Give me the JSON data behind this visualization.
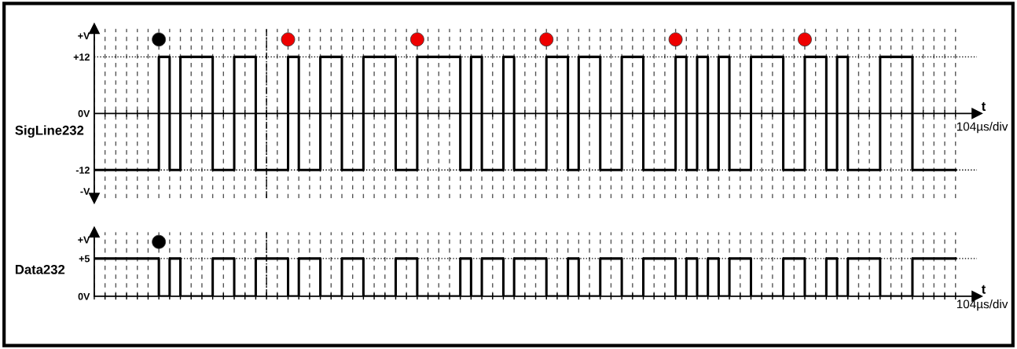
{
  "chart_data": [
    {
      "type": "step",
      "ylabel": "SigLine232",
      "xlabel": "t",
      "annotations": [
        "104µs/div"
      ],
      "tick_labels": "y",
      "grid": "x",
      "ylim": [
        -18,
        18
      ],
      "categories": [
        null,
        null,
        null,
        null,
        null,
        null,
        null,
        null,
        null,
        null,
        null,
        null,
        null,
        null,
        null,
        null,
        null,
        null,
        null,
        null,
        null,
        null,
        null,
        null,
        null,
        null,
        null,
        null,
        null,
        null,
        null,
        null,
        null,
        null,
        null,
        null,
        null,
        null,
        null,
        null,
        null,
        null,
        null,
        null,
        null,
        null,
        null,
        null,
        null,
        null,
        null,
        null,
        null,
        null,
        null,
        null,
        null,
        null,
        null,
        null,
        null,
        null,
        null,
        null,
        null,
        null,
        null,
        null,
        null,
        null,
        null,
        null,
        null,
        null,
        null,
        null,
        null,
        null,
        null,
        null,
        null
      ],
      "yticks": [
        {
          "value": 16.5,
          "label": "+V"
        },
        {
          "value": 12,
          "label": "+12"
        },
        {
          "value": 0,
          "label": "0V"
        },
        {
          "value": -12,
          "label": "-12"
        },
        {
          "value": -16.5,
          "label": "-V"
        }
      ],
      "ref_lines": [
        {
          "axis": "y",
          "value": 12,
          "line_style": "dotted",
          "color": "#000000"
        },
        {
          "axis": "y",
          "value": -12,
          "line_style": "dotted",
          "color": "#000000"
        }
      ],
      "series": [
        {
          "color": "#000000",
          "values": [
            -12,
            -12,
            -12,
            -12,
            -12,
            -12,
            12,
            -12,
            12,
            12,
            12,
            -12,
            -12,
            12,
            12,
            -12,
            -12,
            -12,
            12,
            -12,
            -12,
            12,
            12,
            -12,
            -12,
            12,
            12,
            12,
            -12,
            -12,
            12,
            12,
            12,
            12,
            -12,
            12,
            -12,
            -12,
            12,
            -12,
            -12,
            -12,
            12,
            12,
            -12,
            12,
            12,
            -12,
            -12,
            12,
            12,
            -12,
            -12,
            -12,
            12,
            -12,
            12,
            -12,
            12,
            -12,
            -12,
            12,
            12,
            12,
            -12,
            -12,
            12,
            12,
            -12,
            12,
            -12,
            -12,
            -12,
            12,
            12,
            12,
            -12,
            -12,
            -12,
            -12,
            -12
          ]
        },
        {
          "type": "scatter",
          "marker": "circle",
          "values": [
            null,
            null,
            null,
            null,
            null,
            null,
            15.7,
            null,
            null,
            null,
            null,
            null,
            null,
            null,
            null,
            null,
            null,
            null,
            15.7,
            null,
            null,
            null,
            null,
            null,
            null,
            null,
            null,
            null,
            null,
            null,
            15.7,
            null,
            null,
            null,
            null,
            null,
            null,
            null,
            null,
            null,
            null,
            null,
            15.7,
            null,
            null,
            null,
            null,
            null,
            null,
            null,
            null,
            null,
            null,
            null,
            15.7,
            null,
            null,
            null,
            null,
            null,
            null,
            null,
            null,
            null,
            null,
            null,
            15.7,
            null,
            null,
            null,
            null,
            null,
            null,
            null,
            null,
            null,
            null,
            null,
            null,
            null,
            null
          ],
          "colors": [
            null,
            null,
            null,
            null,
            null,
            null,
            "#000000",
            null,
            null,
            null,
            null,
            null,
            null,
            null,
            null,
            null,
            null,
            null,
            "#ee0000",
            null,
            null,
            null,
            null,
            null,
            null,
            null,
            null,
            null,
            null,
            null,
            "#ee0000",
            null,
            null,
            null,
            null,
            null,
            null,
            null,
            null,
            null,
            null,
            null,
            "#ee0000",
            null,
            null,
            null,
            null,
            null,
            null,
            null,
            null,
            null,
            null,
            null,
            "#ee0000",
            null,
            null,
            null,
            null,
            null,
            null,
            null,
            null,
            null,
            null,
            null,
            "#ee0000",
            null,
            null,
            null,
            null,
            null,
            null,
            null,
            null,
            null,
            null,
            null,
            null,
            null,
            null
          ]
        }
      ]
    },
    {
      "type": "step",
      "ylabel": "Data232",
      "xlabel": "t",
      "annotations": [
        "104µs/div"
      ],
      "tick_labels": "y",
      "grid": "x",
      "ylim": [
        0,
        8.5
      ],
      "categories": [
        null,
        null,
        null,
        null,
        null,
        null,
        null,
        null,
        null,
        null,
        null,
        null,
        null,
        null,
        null,
        null,
        null,
        null,
        null,
        null,
        null,
        null,
        null,
        null,
        null,
        null,
        null,
        null,
        null,
        null,
        null,
        null,
        null,
        null,
        null,
        null,
        null,
        null,
        null,
        null,
        null,
        null,
        null,
        null,
        null,
        null,
        null,
        null,
        null,
        null,
        null,
        null,
        null,
        null,
        null,
        null,
        null,
        null,
        null,
        null,
        null,
        null,
        null,
        null,
        null,
        null,
        null,
        null,
        null,
        null,
        null,
        null,
        null,
        null,
        null,
        null,
        null,
        null,
        null,
        null,
        null
      ],
      "yticks": [
        {
          "value": 7.5,
          "label": "+V"
        },
        {
          "value": 5,
          "label": "+5"
        },
        {
          "value": 0,
          "label": "0V"
        }
      ],
      "ref_lines": [
        {
          "axis": "y",
          "value": 5,
          "line_style": "dotted",
          "color": "#000000"
        }
      ],
      "series": [
        {
          "color": "#000000",
          "values": [
            5,
            5,
            5,
            5,
            5,
            5,
            0,
            5,
            0,
            0,
            0,
            5,
            5,
            0,
            0,
            5,
            5,
            5,
            0,
            5,
            5,
            0,
            0,
            5,
            5,
            0,
            0,
            0,
            5,
            5,
            0,
            0,
            0,
            0,
            5,
            0,
            5,
            5,
            0,
            5,
            5,
            5,
            0,
            0,
            5,
            0,
            0,
            5,
            5,
            0,
            0,
            5,
            5,
            5,
            0,
            5,
            0,
            5,
            0,
            5,
            5,
            0,
            0,
            0,
            5,
            5,
            0,
            0,
            5,
            0,
            5,
            5,
            5,
            0,
            0,
            0,
            5,
            5,
            5,
            5,
            5
          ]
        },
        {
          "type": "scatter",
          "marker": "circle",
          "values": [
            null,
            null,
            null,
            null,
            null,
            null,
            7.2,
            null,
            null,
            null,
            null,
            null,
            null,
            null,
            null,
            null,
            null,
            null,
            null,
            null,
            null,
            null,
            null,
            null,
            null,
            null,
            null,
            null,
            null,
            null,
            null,
            null,
            null,
            null,
            null,
            null,
            null,
            null,
            null,
            null,
            null,
            null,
            null,
            null,
            null,
            null,
            null,
            null,
            null,
            null,
            null,
            null,
            null,
            null,
            null,
            null,
            null,
            null,
            null,
            null,
            null,
            null,
            null,
            null,
            null,
            null,
            null,
            null,
            null,
            null,
            null,
            null,
            null,
            null,
            null,
            null,
            null,
            null,
            null,
            null,
            null
          ],
          "colors": [
            null,
            null,
            null,
            null,
            null,
            null,
            "#000000",
            null,
            null,
            null,
            null,
            null,
            null,
            null,
            null,
            null,
            null,
            null,
            null,
            null,
            null,
            null,
            null,
            null,
            null,
            null,
            null,
            null,
            null,
            null,
            null,
            null,
            null,
            null,
            null,
            null,
            null,
            null,
            null,
            null,
            null,
            null,
            null,
            null,
            null,
            null,
            null,
            null,
            null,
            null,
            null,
            null,
            null,
            null,
            null,
            null,
            null,
            null,
            null,
            null,
            null,
            null,
            null,
            null,
            null,
            null,
            null,
            null,
            null,
            null,
            null,
            null,
            null,
            null,
            null,
            null,
            null,
            null,
            null,
            null,
            null
          ]
        }
      ]
    }
  ]
}
